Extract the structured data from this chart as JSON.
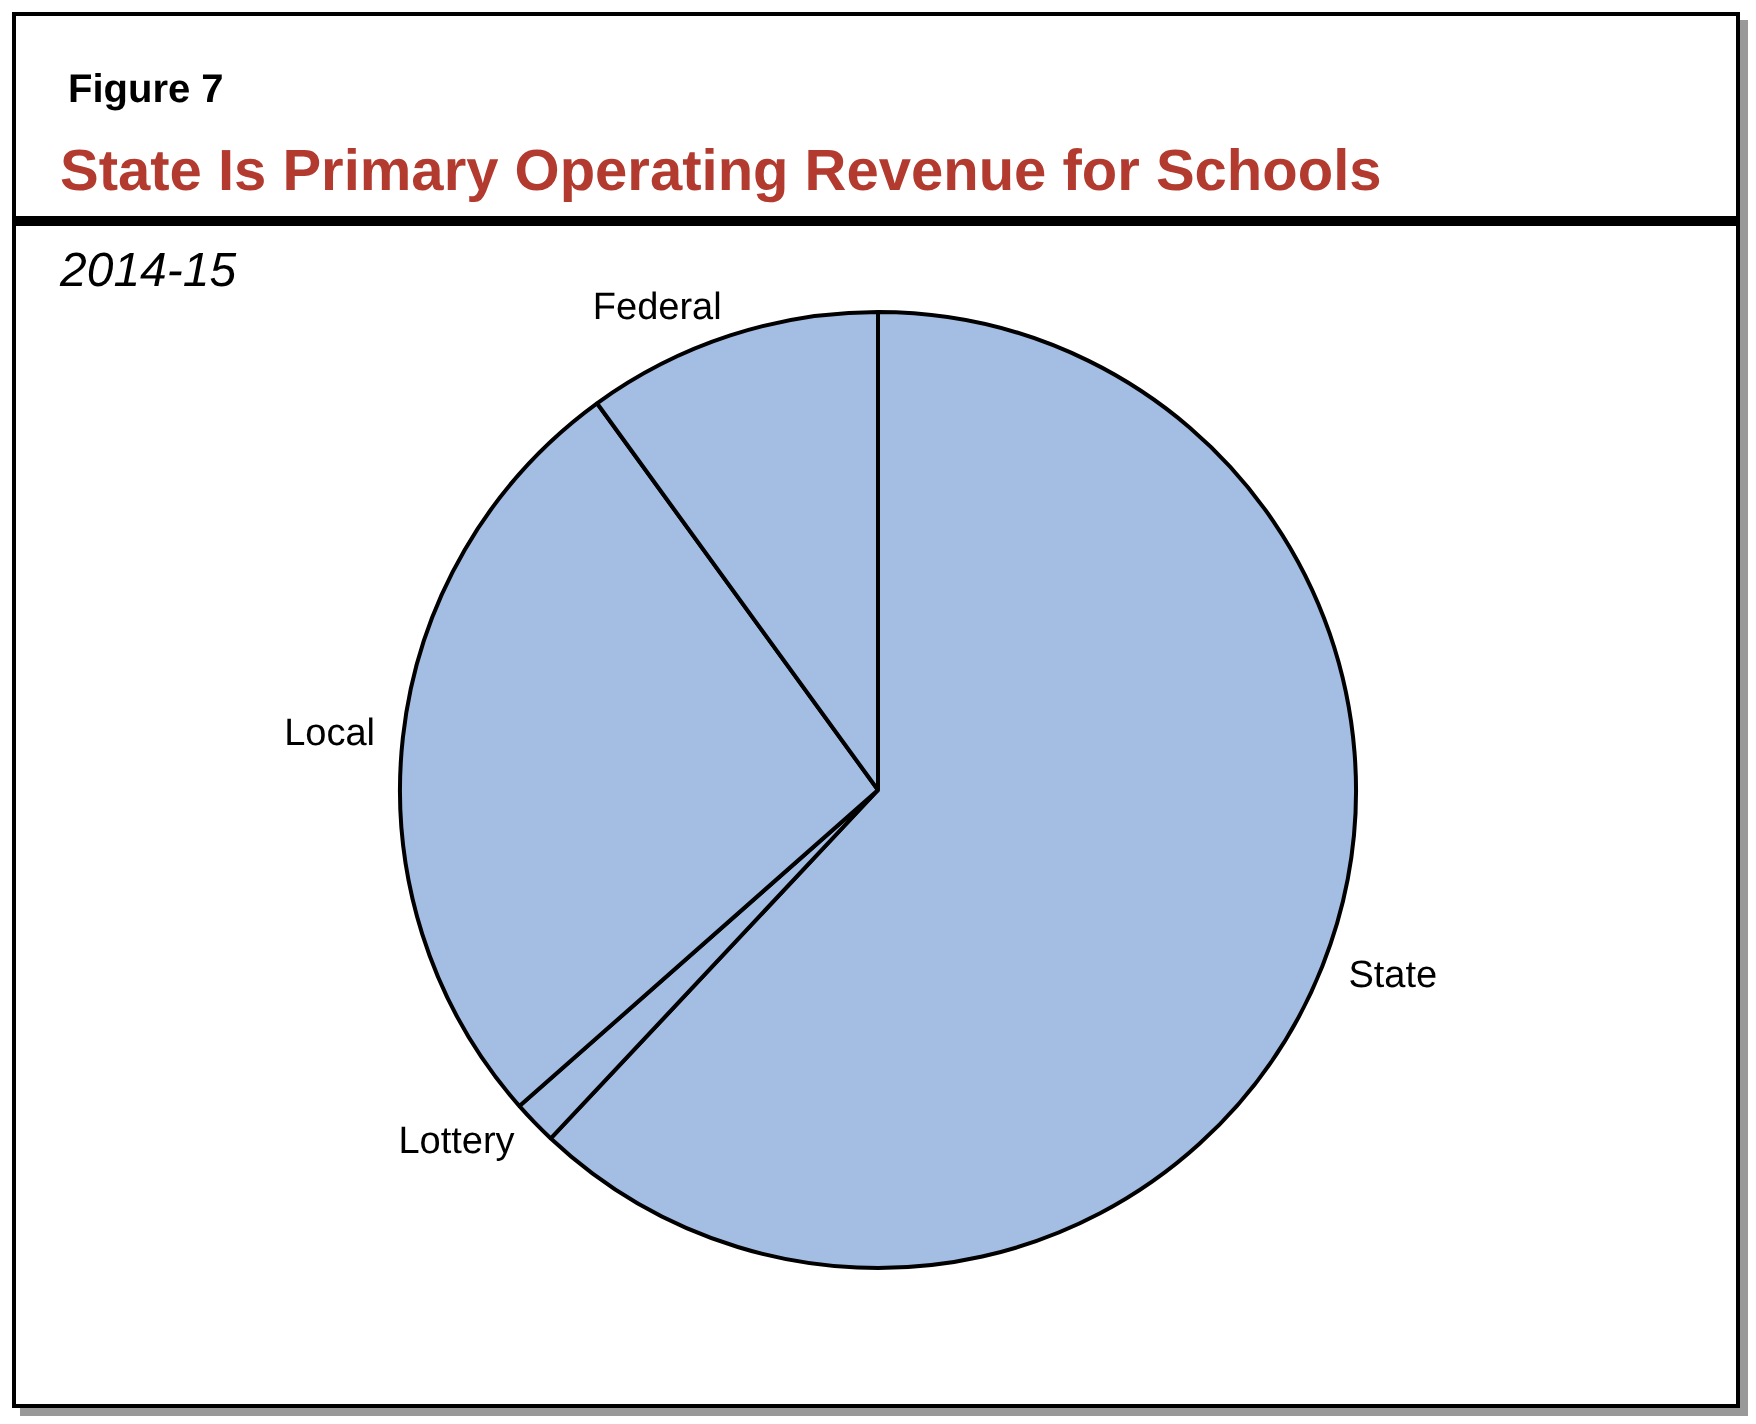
{
  "chart_data": {
    "type": "pie",
    "title": "State Is Primary Operating Revenue for Schools",
    "subtitle": "2014-15",
    "annotations": [
      "Figure 7"
    ],
    "categories": [
      "State",
      "Lottery",
      "Local",
      "Federal"
    ],
    "values": [
      62,
      1.5,
      26.5,
      10
    ],
    "colors": [
      "#a4bde3",
      "#a4bde3",
      "#a4bde3",
      "#a4bde3"
    ],
    "legend": false
  }
}
